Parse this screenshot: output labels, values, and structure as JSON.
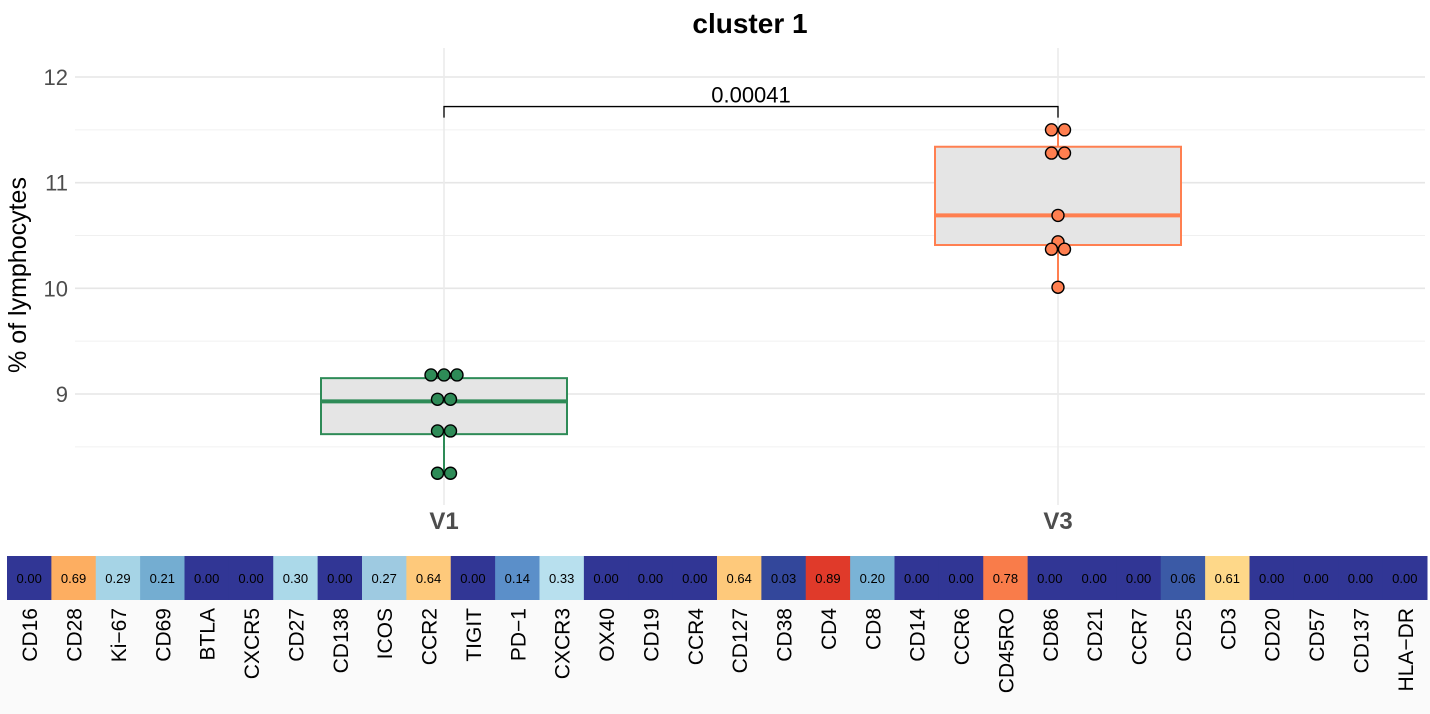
{
  "chart_data": [
    {
      "type": "box",
      "title": "cluster 1",
      "xlabel": "",
      "ylabel": "% of lymphocytes",
      "ylim": [
        8.0,
        12.2
      ],
      "yticks": [
        9,
        10,
        11,
        12
      ],
      "grid": true,
      "categories": [
        "V1",
        "V3"
      ],
      "colors": {
        "V1": "#2e8b57",
        "V3": "#ff7f50"
      },
      "boxes": [
        {
          "category": "V1",
          "q1": 8.62,
          "median": 8.93,
          "q3": 9.15,
          "whisker_low": 8.25,
          "whisker_high": 9.18,
          "points": [
            9.18,
            9.18,
            9.18,
            8.95,
            8.95,
            8.65,
            8.65,
            8.25,
            8.25
          ]
        },
        {
          "category": "V3",
          "q1": 10.41,
          "median": 10.69,
          "q3": 11.34,
          "whisker_low": 10.01,
          "whisker_high": 11.5,
          "points": [
            11.5,
            11.5,
            11.28,
            11.28,
            10.69,
            10.44,
            10.37,
            10.37,
            10.01
          ]
        }
      ],
      "annotation": {
        "label": "0.00041",
        "from": "V1",
        "to": "V3",
        "y": 11.72
      }
    },
    {
      "type": "heatmap",
      "labels": [
        "CD16",
        "CD28",
        "Ki−67",
        "CD69",
        "BTLA",
        "CXCR5",
        "CD27",
        "CD138",
        "ICOS",
        "CCR2",
        "TIGIT",
        "PD−1",
        "CXCR3",
        "OX40",
        "CD19",
        "CCR4",
        "CD127",
        "CD38",
        "CD4",
        "CD8",
        "CD14",
        "CCR6",
        "CD45RO",
        "CD86",
        "CD21",
        "CCR7",
        "CD25",
        "CD3",
        "CD20",
        "CD57",
        "CD137",
        "HLA−DR"
      ],
      "values": [
        "0.00",
        "0.69",
        "0.29",
        "0.21",
        "0.00",
        "0.00",
        "0.30",
        "0.00",
        "0.27",
        "0.64",
        "0.00",
        "0.14",
        "0.33",
        "0.00",
        "0.00",
        "0.00",
        "0.64",
        "0.03",
        "0.89",
        "0.20",
        "0.00",
        "0.00",
        "0.78",
        "0.00",
        "0.00",
        "0.00",
        "0.06",
        "0.61",
        "0.00",
        "0.00",
        "0.00",
        "0.00"
      ],
      "colors": [
        "#313695",
        "#fdae61",
        "#a6d4e6",
        "#74add1",
        "#313695",
        "#313695",
        "#abd9e9",
        "#313695",
        "#9ecae1",
        "#fec97b",
        "#313695",
        "#5b8fc9",
        "#b8e0ee",
        "#313695",
        "#313695",
        "#313695",
        "#fec97b",
        "#33479b",
        "#e03a2a",
        "#7ab3d6",
        "#313695",
        "#313695",
        "#f97c4a",
        "#313695",
        "#313695",
        "#313695",
        "#3b5aa6",
        "#fed889",
        "#313695",
        "#313695",
        "#313695",
        "#313695"
      ]
    }
  ]
}
